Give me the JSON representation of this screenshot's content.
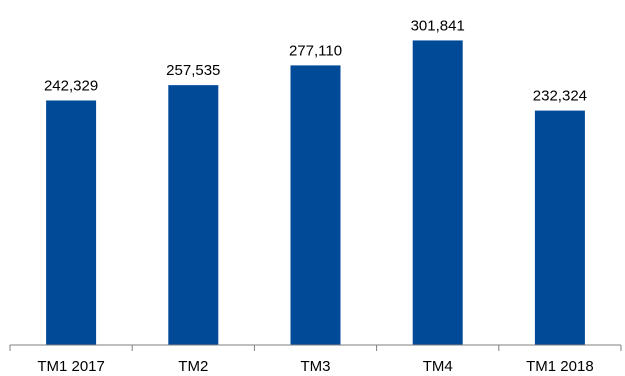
{
  "chart_data": {
    "type": "bar",
    "categories": [
      "TM1 2017",
      "TM2",
      "TM3",
      "TM4",
      "TM1 2018"
    ],
    "values": [
      242329,
      257535,
      277110,
      301841,
      232324
    ],
    "value_labels": [
      "242,329",
      "257,535",
      "277,110",
      "301,841",
      "232,324"
    ],
    "title": "",
    "xlabel": "",
    "ylabel": "",
    "ylim": [
      0,
      320000
    ],
    "grid": false,
    "legend": "none",
    "bar_color": "#004a98"
  }
}
